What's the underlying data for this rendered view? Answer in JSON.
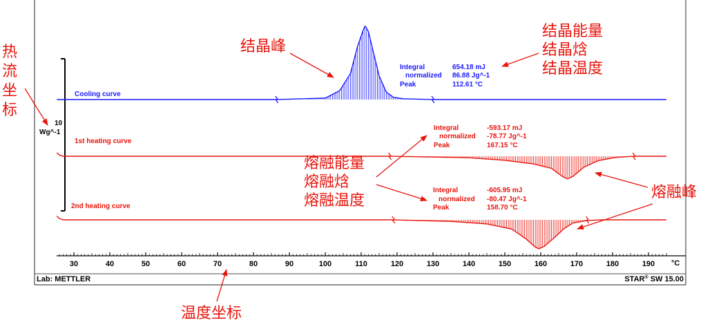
{
  "colors": {
    "cooling": "#1a1aff",
    "heating": "#e8140c",
    "annotation": "#e8140c",
    "frame": "#4d4d4d",
    "text": "#000000"
  },
  "footer": {
    "lab": "Lab: METTLER",
    "star": "STAR",
    "registered": "®",
    "software": " SW 15.00"
  },
  "annotations": {
    "heat_flow_axis": [
      "热",
      "流",
      "坐",
      "标"
    ],
    "temperature_axis": "温度坐标",
    "crystallization_peak": "结晶峰",
    "crystallization_props": [
      "结晶能量",
      "结晶焓",
      "结晶温度"
    ],
    "melting_props": [
      "熔融能量",
      "熔融焓",
      "熔融温度"
    ],
    "melting_peak": "熔融峰"
  },
  "chart_data": {
    "type": "line",
    "title": "",
    "xlabel": "°C",
    "ylabel": "",
    "x_unit": "°C",
    "xlim": [
      25,
      195
    ],
    "x_ticks": [
      30,
      40,
      50,
      60,
      70,
      80,
      90,
      100,
      110,
      120,
      130,
      140,
      150,
      160,
      170,
      180,
      190
    ],
    "scale_bar": {
      "value": "10",
      "unit": "Wg^-1"
    },
    "series": [
      {
        "name": "Cooling curve",
        "color": "#1a1aff",
        "points": [
          [
            25,
            0
          ],
          [
            86.5,
            0
          ],
          [
            100,
            0.02
          ],
          [
            104,
            0.12
          ],
          [
            107,
            0.35
          ],
          [
            109,
            0.72
          ],
          [
            110.5,
            0.93
          ],
          [
            111.1,
            1.0
          ],
          [
            112,
            0.92
          ],
          [
            113.5,
            0.62
          ],
          [
            115,
            0.32
          ],
          [
            117,
            0.1
          ],
          [
            119,
            0.03
          ],
          [
            122,
            0.01
          ],
          [
            130,
            0
          ],
          [
            195,
            0
          ]
        ],
        "integration": {
          "start": 86.5,
          "end": 130
        },
        "results": {
          "integral_label": "Integral",
          "integral": "654.18 mJ",
          "normalized_label": "normalized",
          "normalized": "86.88 Jg^-1",
          "peak_label": "Peak",
          "peak": "112.61 °C"
        }
      },
      {
        "name": "1st heating curve",
        "color": "#e8140c",
        "points": [
          [
            25,
            0.12
          ],
          [
            26,
            0.03
          ],
          [
            27,
            0
          ],
          [
            118,
            0
          ],
          [
            140,
            -0.04
          ],
          [
            150,
            -0.11
          ],
          [
            158,
            -0.21
          ],
          [
            163,
            -0.33
          ],
          [
            166,
            -0.55
          ],
          [
            167.4,
            -0.62
          ],
          [
            169,
            -0.55
          ],
          [
            172,
            -0.3
          ],
          [
            176,
            -0.12
          ],
          [
            181,
            -0.03
          ],
          [
            186,
            0
          ],
          [
            195,
            0
          ]
        ],
        "integration": {
          "start": 118,
          "end": 186
        },
        "results": {
          "integral_label": "Integral",
          "integral": "-593.17 mJ",
          "normalized_label": "normalized",
          "normalized": "-78.77 Jg^-1",
          "peak_label": "Peak",
          "peak": "167.15 °C"
        }
      },
      {
        "name": "2nd heating curve",
        "color": "#e8140c",
        "points": [
          [
            25,
            0.15
          ],
          [
            26,
            0.04
          ],
          [
            27,
            0
          ],
          [
            119,
            0
          ],
          [
            135,
            -0.05
          ],
          [
            145,
            -0.13
          ],
          [
            152,
            -0.3
          ],
          [
            156,
            -0.62
          ],
          [
            158.5,
            -0.88
          ],
          [
            159.5,
            -0.93
          ],
          [
            161,
            -0.85
          ],
          [
            164,
            -0.55
          ],
          [
            166.5,
            -0.28
          ],
          [
            169,
            -0.1
          ],
          [
            173,
            -0.02
          ],
          [
            177,
            0
          ],
          [
            195,
            0
          ]
        ],
        "integration": {
          "start": 119,
          "end": 173
        },
        "results": {
          "integral_label": "Integral",
          "integral": "-605.95 mJ",
          "normalized_label": "normalized",
          "normalized": "-80.47 Jg^-1",
          "peak_label": "Peak",
          "peak": "158.70 °C"
        }
      }
    ]
  }
}
